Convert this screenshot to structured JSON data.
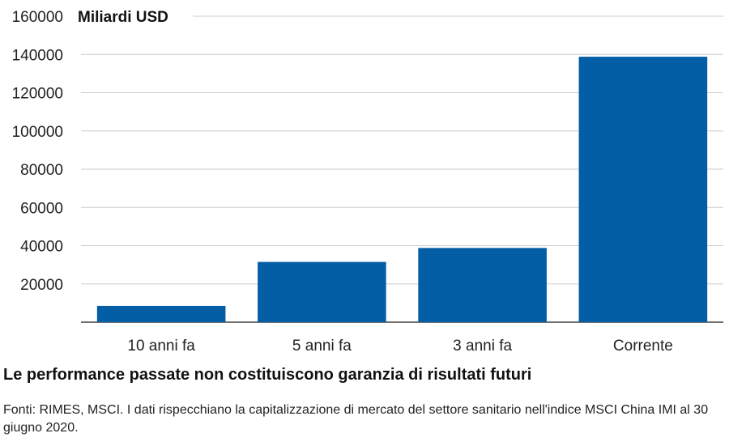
{
  "chart_data": {
    "type": "bar",
    "ylabel": "Miliardi USD",
    "categories": [
      "10 anni fa",
      "5 anni fa",
      "3 anni fa",
      "Corrente"
    ],
    "values": [
      8500,
      31500,
      38800,
      138800
    ],
    "ylim": [
      0,
      160000
    ],
    "yticks": [
      "20000",
      "40000",
      "60000",
      "80000",
      "100000",
      "120000",
      "140000",
      "160000"
    ],
    "grid": true,
    "bar_color": "#045EA5"
  },
  "footer": {
    "disclaimer": "Le performance passate non costituiscono garanzia di risultati futuri",
    "source": "Fonti: RIMES, MSCI. I dati rispecchiano la capitalizzazione di mercato del settore sanitario nell'indice MSCI China IMI al 30 giugno 2020."
  }
}
